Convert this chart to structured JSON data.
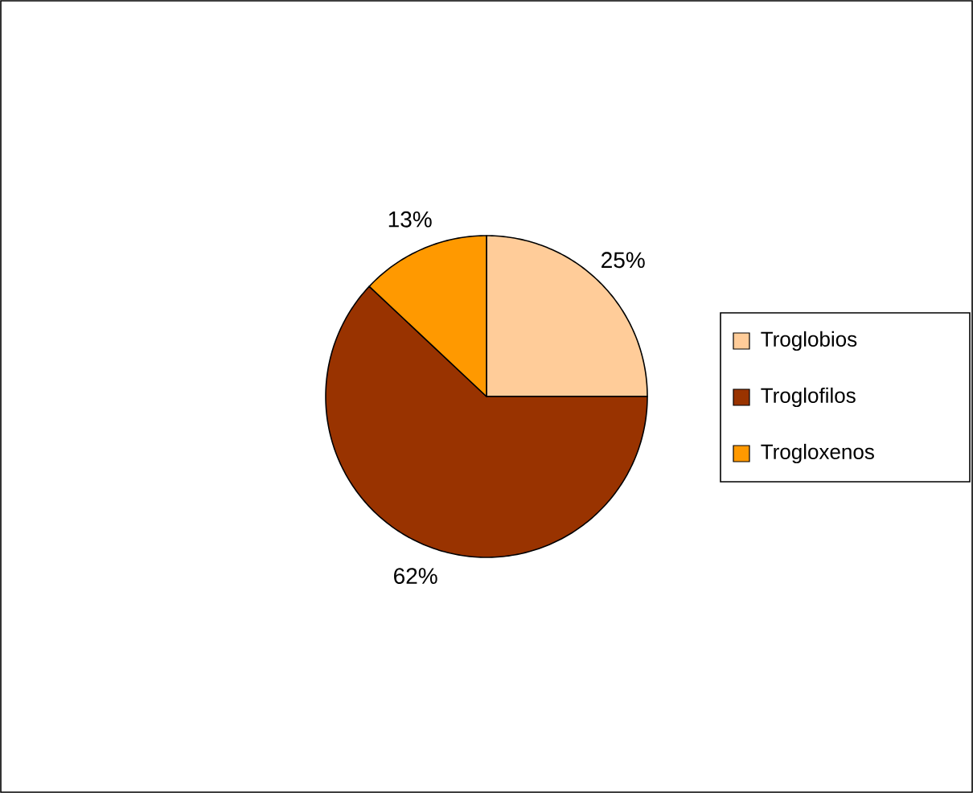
{
  "chart_data": {
    "type": "pie",
    "categories": [
      "Troglobios",
      "Troglofilos",
      "Trogloxenos"
    ],
    "values": [
      25,
      62,
      13
    ],
    "value_labels": [
      "25%",
      "62%",
      "13%"
    ],
    "colors": [
      "#ffcc99",
      "#993300",
      "#ff9900"
    ],
    "legend": "right"
  }
}
